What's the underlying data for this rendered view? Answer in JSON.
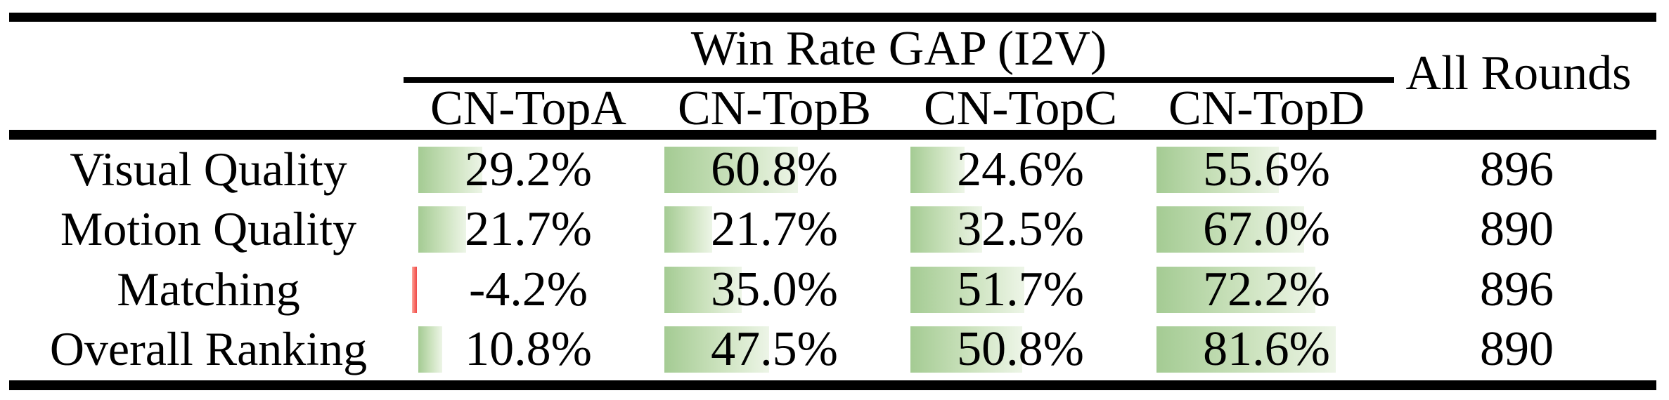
{
  "chart_data": {
    "type": "table",
    "title": "Win Rate GAP (I2V)",
    "row_header": [
      "Visual Quality",
      "Motion Quality",
      "Matching",
      "Overall Ranking"
    ],
    "columns": [
      "CN-TopA",
      "CN-TopB",
      "CN-TopC",
      "CN-TopD",
      "All Rounds"
    ],
    "series": [
      {
        "name": "CN-TopA",
        "unit": "%",
        "values": [
          29.2,
          21.7,
          -4.2,
          10.8
        ]
      },
      {
        "name": "CN-TopB",
        "unit": "%",
        "values": [
          60.8,
          21.7,
          35.0,
          47.5
        ]
      },
      {
        "name": "CN-TopC",
        "unit": "%",
        "values": [
          24.6,
          32.5,
          51.7,
          50.8
        ]
      },
      {
        "name": "CN-TopD",
        "unit": "%",
        "values": [
          55.6,
          67.0,
          72.2,
          81.6
        ]
      },
      {
        "name": "All Rounds",
        "unit": "count",
        "values": [
          896,
          890,
          896,
          890
        ]
      }
    ],
    "layout": "in-cell data bars, green gradient for positive values, red bar for negative values, bar length proportional to percentage"
  },
  "table": {
    "title": "Win Rate GAP (I2V)",
    "all_rounds_header": "All Rounds",
    "columns": [
      "CN-TopA",
      "CN-TopB",
      "CN-TopC",
      "CN-TopD"
    ],
    "rows": [
      {
        "label": "Visual Quality",
        "values": [
          "29.2%",
          "60.8%",
          "24.6%",
          "55.6%"
        ],
        "numeric": [
          29.2,
          60.8,
          24.6,
          55.6
        ],
        "all_rounds": "896"
      },
      {
        "label": "Motion Quality",
        "values": [
          "21.7%",
          "21.7%",
          "32.5%",
          "67.0%"
        ],
        "numeric": [
          21.7,
          21.7,
          32.5,
          67.0
        ],
        "all_rounds": "890"
      },
      {
        "label": "Matching",
        "values": [
          "-4.2%",
          "35.0%",
          "51.7%",
          "72.2%"
        ],
        "numeric": [
          -4.2,
          35.0,
          51.7,
          72.2
        ],
        "all_rounds": "896"
      },
      {
        "label": "Overall Ranking",
        "values": [
          "10.8%",
          "47.5%",
          "50.8%",
          "81.6%"
        ],
        "numeric": [
          10.8,
          47.5,
          50.8,
          81.6
        ],
        "all_rounds": "890"
      }
    ]
  },
  "colors": {
    "bar_green_dark": "#a4cb93",
    "bar_green_light": "#edf5e7",
    "bar_negative_red": "#f04848",
    "rule_black": "#000000",
    "background": "#ffffff"
  }
}
